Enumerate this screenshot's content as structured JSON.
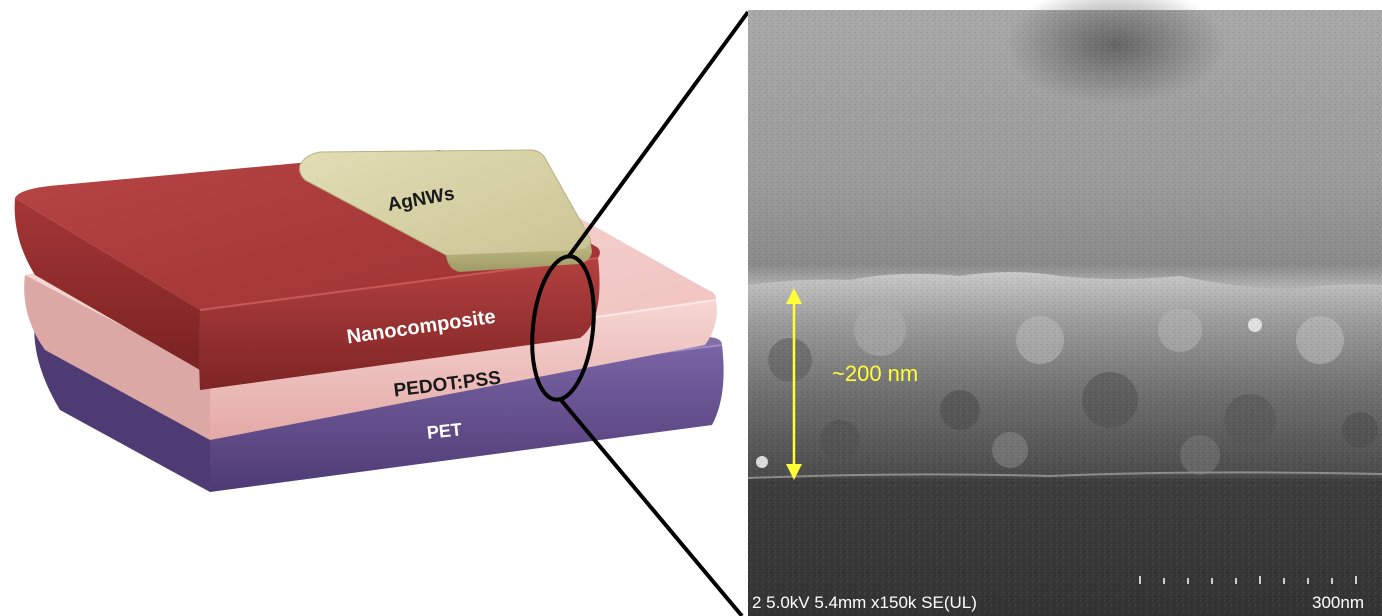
{
  "schematic": {
    "layers": {
      "agnws": "AgNWs",
      "nanocomposite": "Nanocomposite",
      "pedot_pss": "PEDOT:PSS",
      "pet": "PET"
    }
  },
  "sem_image": {
    "thickness_annotation": "~200 nm",
    "info_bar": "2 5.0kV 5.4mm x150k SE(UL)",
    "scale_bar_label": "300nm"
  },
  "colors": {
    "pet": "#6a5292",
    "pedot_pss": "#f1c4c1",
    "nanocomposite": "#a93a3a",
    "agnws": "#d8d2a6",
    "annotation": "#ffff33"
  }
}
